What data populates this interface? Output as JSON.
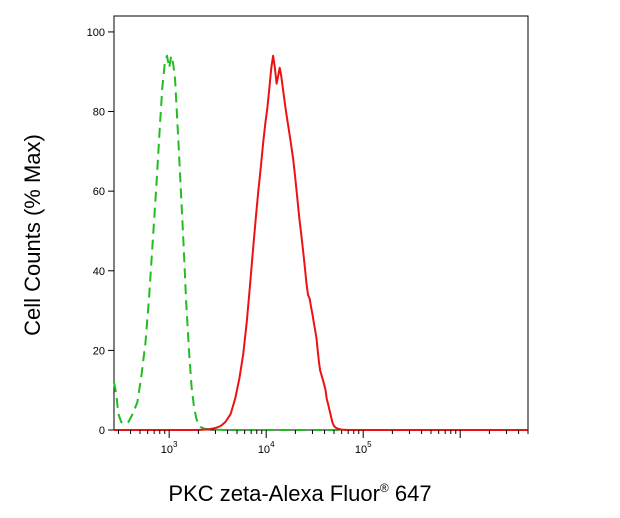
{
  "chart_data": {
    "type": "line",
    "title": "",
    "xlabel": {
      "main": "PKC zeta-Alexa Fluor",
      "superscript": "®",
      "suffix": " 647"
    },
    "ylabel": "Cell Counts (% Max)",
    "xscale": "log",
    "xlim": [
      270,
      5000000
    ],
    "ylim": [
      0,
      104
    ],
    "x_ticks": [
      {
        "value": 1000,
        "base": "10",
        "exp": "3"
      },
      {
        "value": 10000,
        "base": "10",
        "exp": "4"
      },
      {
        "value": 100000,
        "base": "10",
        "exp": "5"
      }
    ],
    "y_ticks": [
      {
        "value": 0,
        "label": "0"
      },
      {
        "value": 20,
        "label": "20"
      },
      {
        "value": 40,
        "label": "40"
      },
      {
        "value": 60,
        "label": "60"
      },
      {
        "value": 80,
        "label": "80"
      },
      {
        "value": 100,
        "label": "100"
      }
    ],
    "grid": false,
    "series": [
      {
        "color": "#22bb22",
        "style": "dashed",
        "x": [
          270,
          285,
          300,
          320,
          350,
          380,
          420,
          470,
          520,
          570,
          620,
          680,
          740,
          800,
          850,
          900,
          950,
          1000,
          1050,
          1100,
          1150,
          1200,
          1260,
          1320,
          1400,
          1500,
          1600,
          1700,
          1800,
          1900,
          2000,
          2100,
          2300,
          2600,
          3000,
          4000,
          6000,
          10000,
          20000,
          50000,
          100000,
          200000,
          500000,
          1000000,
          5000000
        ],
        "y": [
          12,
          9,
          4,
          2,
          1.5,
          2,
          4,
          7,
          14,
          22,
          33,
          48,
          62,
          76,
          86,
          92,
          94,
          91,
          94,
          92,
          88,
          80,
          70,
          60,
          48,
          32,
          20,
          11,
          6,
          3,
          1.5,
          0.8,
          0.3,
          0.2,
          0.1,
          0,
          0,
          0,
          0,
          0,
          0,
          0,
          0,
          0,
          0
        ]
      },
      {
        "color": "#ee1111",
        "style": "solid",
        "x": [
          270,
          1000,
          2000,
          2600,
          3000,
          3400,
          3800,
          4300,
          4800,
          5300,
          5800,
          6300,
          6800,
          7300,
          7800,
          8300,
          8800,
          9300,
          9800,
          10300,
          10800,
          11300,
          11800,
          12300,
          12800,
          13300,
          13800,
          14300,
          15000,
          16000,
          17000,
          18000,
          19000,
          20000,
          21000,
          22000,
          23000,
          24000,
          25000,
          26000,
          27000,
          28000,
          29000,
          30000,
          31000,
          32000,
          33000,
          34000,
          35000,
          36000,
          37000,
          38000,
          39000,
          40000,
          41000,
          42000,
          43000,
          44000,
          45000,
          46000,
          47000,
          48000,
          49000,
          50000,
          52000,
          55000,
          60000,
          70000,
          100000,
          200000,
          5000000
        ],
        "y": [
          0,
          0,
          0,
          0.2,
          0.5,
          1,
          2,
          4,
          8,
          13,
          19,
          27,
          36,
          45,
          53,
          60,
          66,
          72,
          77,
          81,
          86,
          91,
          94,
          91,
          87,
          89,
          91,
          89,
          85,
          80,
          76,
          72,
          68,
          63,
          58,
          53,
          49,
          45,
          41,
          37,
          34,
          33,
          31,
          29,
          27,
          25,
          23,
          20,
          17,
          15,
          14,
          13,
          12,
          11,
          10,
          8,
          7,
          6,
          5,
          4,
          3,
          2,
          1.5,
          1,
          0.6,
          0.3,
          0.1,
          0,
          0,
          0,
          0
        ]
      }
    ]
  }
}
